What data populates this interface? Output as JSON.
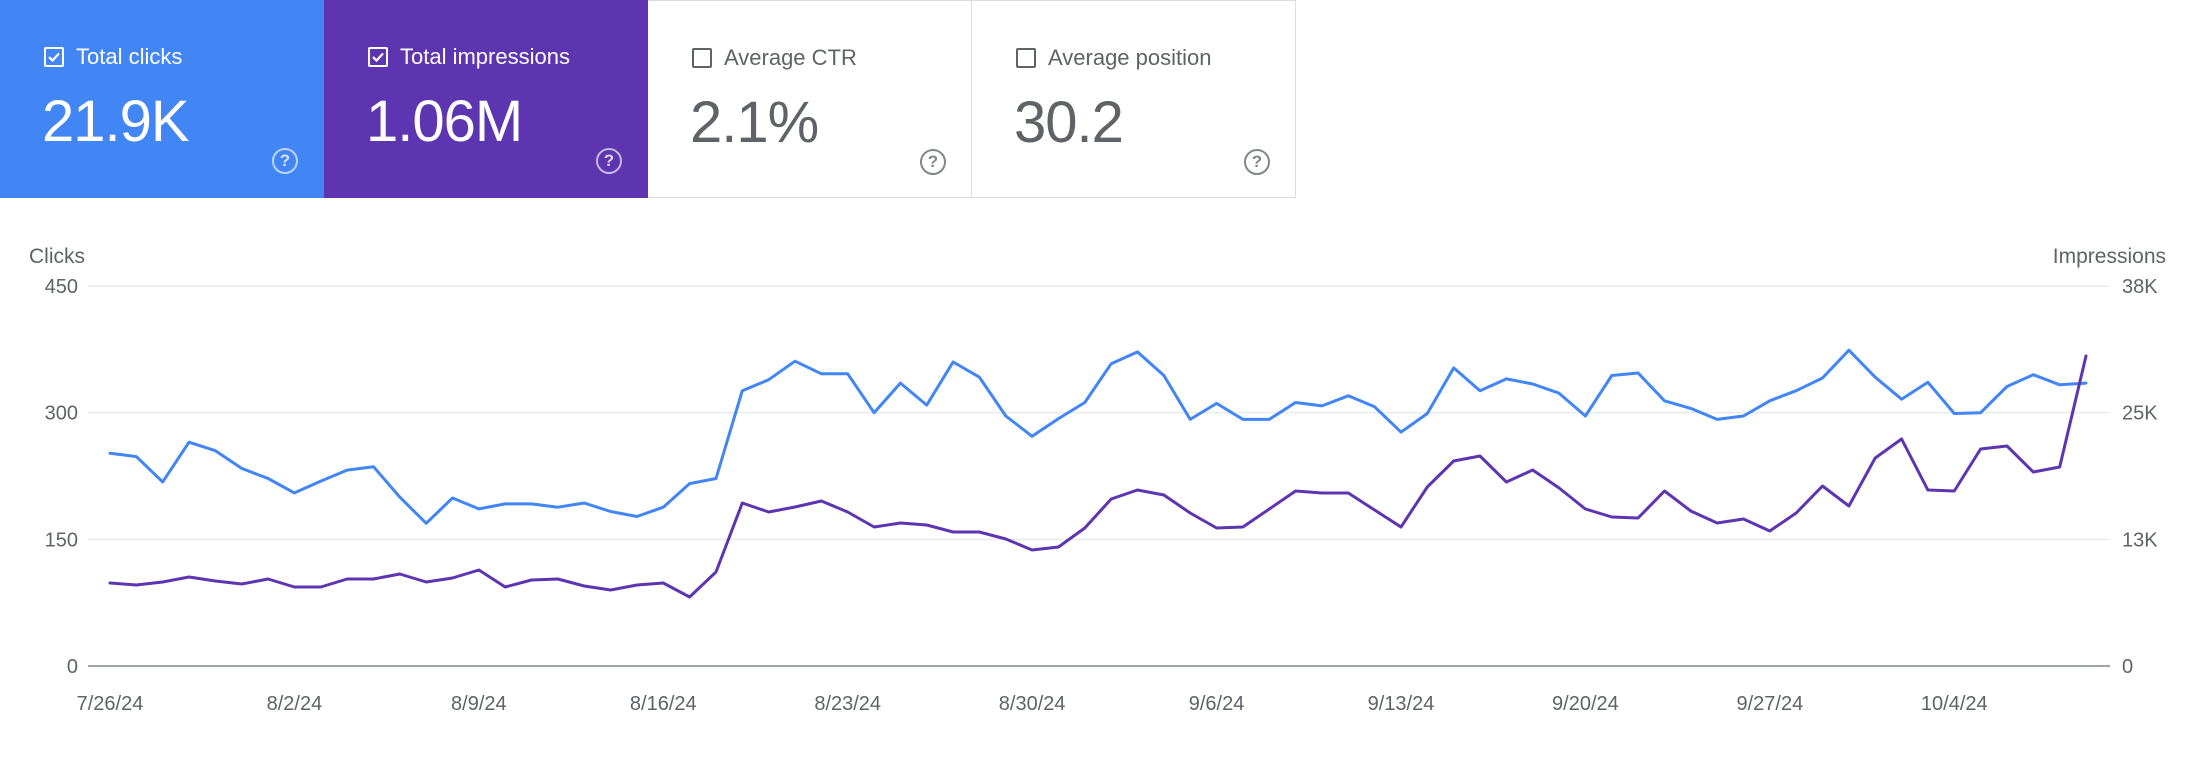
{
  "cards": [
    {
      "label": "Total clicks",
      "value": "21.9K",
      "checked": true,
      "color": "#4285f4"
    },
    {
      "label": "Total impressions",
      "value": "1.06M",
      "checked": true,
      "color": "#5e35b1"
    },
    {
      "label": "Average CTR",
      "value": "2.1%",
      "checked": false,
      "color": "#ffffff"
    },
    {
      "label": "Average position",
      "value": "30.2",
      "checked": false,
      "color": "#ffffff"
    }
  ],
  "chart_data": {
    "type": "line",
    "left_axis": {
      "title": "Clicks",
      "ticks": [
        "0",
        "150",
        "300",
        "450"
      ],
      "range": [
        0,
        450
      ]
    },
    "right_axis": {
      "title": "Impressions",
      "ticks": [
        "0",
        "13K",
        "25K",
        "38K"
      ],
      "range": [
        0,
        38000
      ]
    },
    "x_tick_labels": [
      "7/26/24",
      "8/2/24",
      "8/9/24",
      "8/16/24",
      "8/23/24",
      "8/30/24",
      "9/6/24",
      "9/13/24",
      "9/20/24",
      "9/27/24",
      "10/4/24"
    ],
    "x_start": "7/26/24",
    "x_end": "10/10/24",
    "grid": true,
    "legend": "none",
    "series": [
      {
        "name": "Clicks",
        "axis": "left",
        "color": "#4285f4",
        "values": [
          252,
          248,
          218,
          265,
          255,
          234,
          222,
          205,
          219,
          232,
          236,
          200,
          169,
          199,
          186,
          192,
          192,
          188,
          193,
          183,
          177,
          188,
          216,
          222,
          326,
          339,
          361,
          346,
          346,
          300,
          335,
          309,
          360,
          342,
          296,
          272,
          293,
          312,
          358,
          372,
          344,
          292,
          311,
          292,
          292,
          312,
          308,
          320,
          307,
          277,
          299,
          353,
          326,
          340,
          334,
          323,
          296,
          344,
          347,
          314,
          305,
          292,
          296,
          314,
          326,
          341,
          374,
          342,
          316,
          336,
          299,
          300,
          331,
          345,
          333,
          335
        ]
      },
      {
        "name": "Impressions",
        "axis": "right",
        "color": "#5e35b1",
        "values": [
          8300,
          8100,
          8400,
          8900,
          8500,
          8200,
          8700,
          7900,
          7900,
          8700,
          8700,
          9200,
          8400,
          8800,
          9600,
          7900,
          8600,
          8700,
          8000,
          7600,
          8100,
          8300,
          6900,
          9400,
          16300,
          15400,
          15900,
          16500,
          15400,
          13900,
          14300,
          14100,
          13400,
          13400,
          12700,
          11600,
          11900,
          13800,
          16700,
          17600,
          17100,
          15300,
          13800,
          13900,
          15700,
          17500,
          17300,
          17300,
          15600,
          13900,
          17900,
          20500,
          21000,
          18400,
          19600,
          17800,
          15700,
          14900,
          14800,
          17500,
          15500,
          14300,
          14700,
          13500,
          15300,
          18000,
          16000,
          20800,
          22700,
          17600,
          17500,
          21700,
          22000,
          19400,
          19900,
          31000
        ]
      }
    ]
  }
}
